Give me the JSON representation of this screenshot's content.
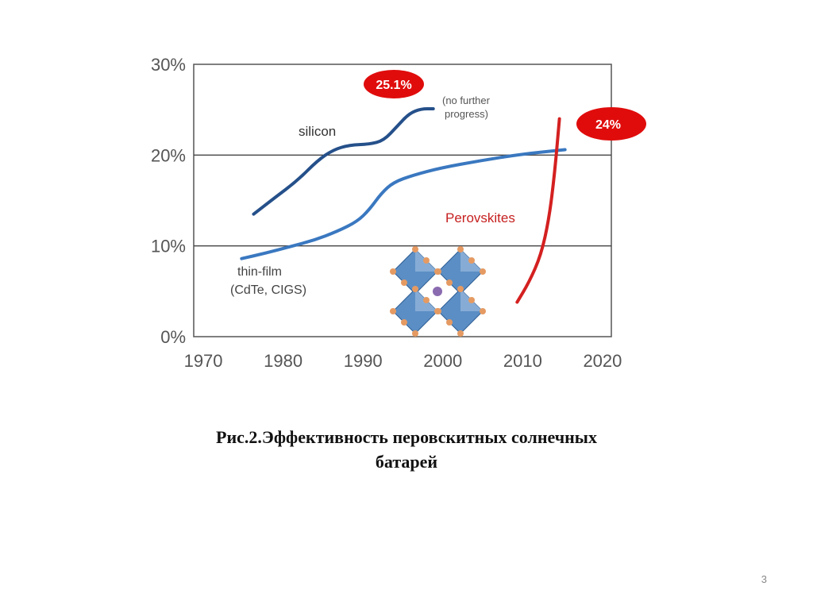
{
  "chart_data": {
    "type": "line",
    "title": "",
    "xlabel": "",
    "ylabel": "",
    "xlim": [
      1969,
      2021.3
    ],
    "ylim": [
      0,
      30
    ],
    "x_ticks": [
      "1970",
      "1980",
      "1990",
      "2000",
      "2010",
      "2020"
    ],
    "x_tick_values": [
      1970,
      1980,
      1990,
      2000,
      2010,
      2020
    ],
    "y_ticks": [
      "0%",
      "10%",
      "20%",
      "30%"
    ],
    "y_tick_values": [
      0,
      10,
      20,
      30
    ],
    "gridlines_y": [
      10,
      20
    ],
    "series": [
      {
        "name": "silicon",
        "color": "#25508a",
        "points": [
          [
            1976.5,
            13.5
          ],
          [
            1979,
            15.2
          ],
          [
            1982,
            17.2
          ],
          [
            1984.5,
            19.4
          ],
          [
            1986.5,
            20.6
          ],
          [
            1988.5,
            21.1
          ],
          [
            1991,
            21.2
          ],
          [
            1992.8,
            21.6
          ],
          [
            1994.5,
            23.2
          ],
          [
            1996,
            24.6
          ],
          [
            1997.5,
            25.1
          ],
          [
            1999,
            25.1
          ]
        ]
      },
      {
        "name": "thin-film (CdTe, CIGS)",
        "color": "#3a78c0",
        "points": [
          [
            1975,
            8.6
          ],
          [
            1978,
            9.2
          ],
          [
            1981,
            9.9
          ],
          [
            1984,
            10.6
          ],
          [
            1987,
            11.6
          ],
          [
            1989.5,
            12.7
          ],
          [
            1991,
            14
          ],
          [
            1992.5,
            15.8
          ],
          [
            1994,
            17
          ],
          [
            1996.5,
            17.8
          ],
          [
            2000,
            18.6
          ],
          [
            2005,
            19.4
          ],
          [
            2010,
            20.1
          ],
          [
            2015.5,
            20.6
          ]
        ]
      },
      {
        "name": "Perovskites",
        "color": "#d42020",
        "points": [
          [
            2009.5,
            3.8
          ],
          [
            2011,
            6
          ],
          [
            2012.5,
            9
          ],
          [
            2013.5,
            13
          ],
          [
            2014.2,
            18
          ],
          [
            2014.8,
            24
          ]
        ]
      }
    ],
    "annotations": {
      "silicon_label": "silicon",
      "thinfilm_label_1": "thin-film",
      "thinfilm_label_2": "(CdTe, CIGS)",
      "perovskite_label": "Perovskites",
      "silicon_record": "25.1%",
      "no_progress_1": "(no further",
      "no_progress_2": "progress)",
      "perovskite_record": "24%"
    },
    "bubble_color": "#e00c0c"
  },
  "caption": {
    "line1": "Рис.2.Эффективность перовскитных солнечных",
    "line2": "батарей"
  },
  "page_number": "3"
}
